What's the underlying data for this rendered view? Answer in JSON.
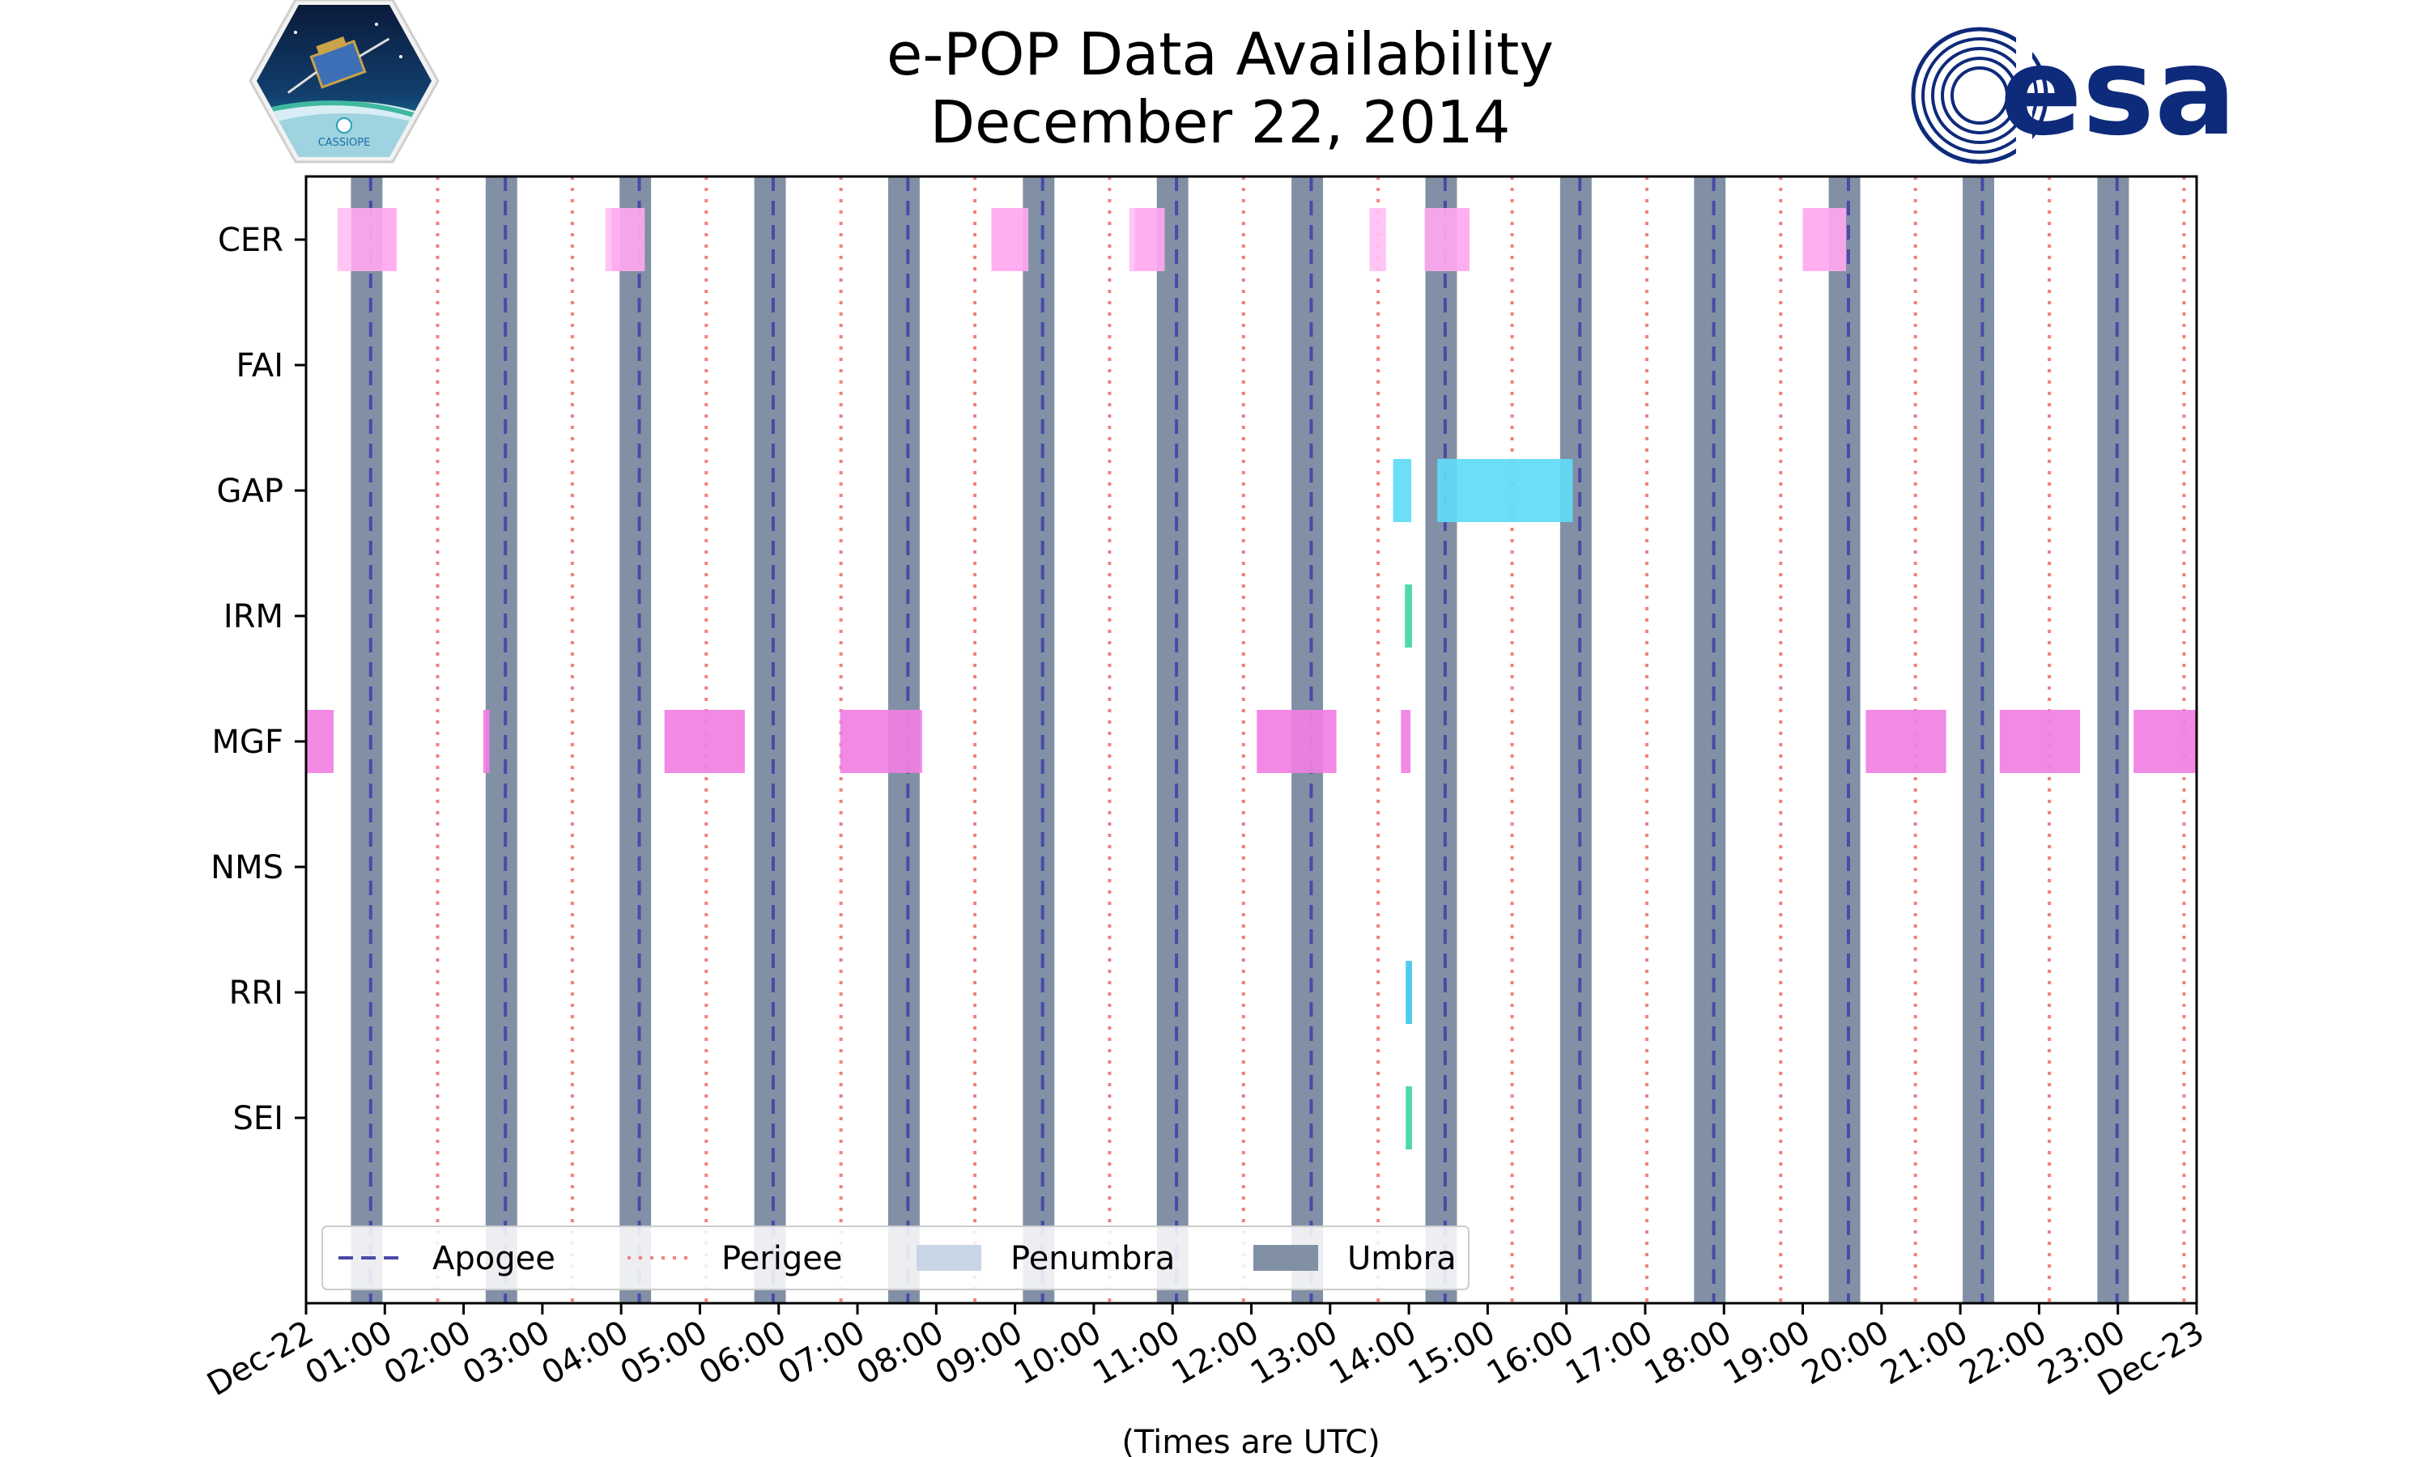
{
  "logos": {
    "left": {
      "name": "CASSIOPE mission patch",
      "text": "CASSIOPE"
    },
    "right": {
      "text": "esa",
      "color": "#0e2a7a"
    }
  },
  "chart_data": {
    "type": "timeline",
    "title_lines": [
      "e-POP Data Availability",
      "December 22, 2014"
    ],
    "xlabel": "(Times are UTC)",
    "x_range_hours": [
      0,
      24
    ],
    "x_tick_labels": [
      "Dec-22",
      "01:00",
      "02:00",
      "03:00",
      "04:00",
      "05:00",
      "06:00",
      "07:00",
      "08:00",
      "09:00",
      "10:00",
      "11:00",
      "12:00",
      "13:00",
      "14:00",
      "15:00",
      "16:00",
      "17:00",
      "18:00",
      "19:00",
      "20:00",
      "21:00",
      "22:00",
      "23:00",
      "Dec-23"
    ],
    "instruments": [
      "CER",
      "FAI",
      "GAP",
      "IRM",
      "MGF",
      "NMS",
      "RRI",
      "SEI"
    ],
    "apogee_hours": [
      0.82,
      2.53,
      4.23,
      5.93,
      7.64,
      9.35,
      11.05,
      12.76,
      14.46,
      16.17,
      17.87,
      19.58,
      21.28,
      22.99
    ],
    "perigee_hours": [
      1.67,
      3.38,
      5.08,
      6.79,
      8.49,
      10.2,
      11.9,
      13.61,
      15.31,
      17.02,
      18.72,
      20.43,
      22.13,
      23.84
    ],
    "umbra_windows": [
      [
        0.57,
        0.97
      ],
      [
        2.28,
        2.68
      ],
      [
        3.98,
        4.38
      ],
      [
        5.69,
        6.09
      ],
      [
        7.39,
        7.79
      ],
      [
        9.1,
        9.5
      ],
      [
        10.8,
        11.2
      ],
      [
        12.51,
        12.91
      ],
      [
        14.21,
        14.61
      ],
      [
        15.92,
        16.32
      ],
      [
        17.62,
        18.02
      ],
      [
        19.33,
        19.73
      ],
      [
        21.03,
        21.43
      ],
      [
        22.74,
        23.14
      ]
    ],
    "penumbra_windows": [],
    "intervals": {
      "CER": [
        [
          0.4,
          0.58,
          "light"
        ],
        [
          0.58,
          1.15,
          "medium"
        ],
        [
          3.8,
          3.88,
          "light"
        ],
        [
          3.88,
          4.3,
          "medium"
        ],
        [
          8.7,
          9.17,
          "medium"
        ],
        [
          10.45,
          10.52,
          "light"
        ],
        [
          10.52,
          10.9,
          "medium"
        ],
        [
          13.5,
          13.71,
          "light"
        ],
        [
          14.2,
          14.77,
          "medium"
        ],
        [
          19.0,
          19.55,
          "medium"
        ]
      ],
      "FAI": [],
      "GAP": [
        [
          13.8,
          14.03,
          "cyan"
        ],
        [
          14.36,
          16.08,
          "cyan"
        ]
      ],
      "IRM": [
        [
          13.95,
          14.04,
          "teal"
        ]
      ],
      "MGF": [
        [
          0.0,
          0.35,
          "mgf"
        ],
        [
          2.25,
          2.33,
          "mgf"
        ],
        [
          4.55,
          5.57,
          "mgf"
        ],
        [
          6.78,
          7.82,
          "mgf"
        ],
        [
          12.07,
          13.08,
          "mgf"
        ],
        [
          13.9,
          14.02,
          "mgf"
        ],
        [
          19.8,
          20.82,
          "mgf"
        ],
        [
          21.5,
          22.52,
          "mgf"
        ],
        [
          23.2,
          24.0,
          "mgf"
        ]
      ],
      "NMS": [],
      "RRI": [
        [
          13.96,
          14.04,
          "sky"
        ]
      ],
      "SEI": [
        [
          13.96,
          14.04,
          "teal"
        ]
      ]
    },
    "legend": [
      {
        "label": "Apogee",
        "style": "dashed"
      },
      {
        "label": "Perigee",
        "style": "dotted"
      },
      {
        "label": "Penumbra",
        "style": "patch"
      },
      {
        "label": "Umbra",
        "style": "patch"
      }
    ],
    "colors": {
      "umbra": "#8190a5",
      "penumbra": "#c8d5e6",
      "apogee": "#4a4aa8",
      "perigee": "#f08080",
      "light": "#ffc0f3",
      "medium": "#ffa8f0",
      "mgf": "#f17fe3",
      "cyan": "#5fdcf6",
      "teal": "#40d6a8",
      "sky": "#40c8ec"
    }
  }
}
